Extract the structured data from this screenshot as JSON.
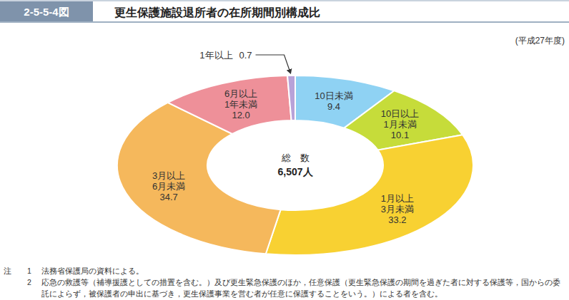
{
  "header": {
    "figure_number": "2-5-5-4図"
  },
  "chart_data": {
    "type": "donut",
    "title": "更生保護施設退所者の在所期間別構成比",
    "subtitle": "(平成27年度)",
    "categories": [
      "10日未満",
      "10日以上\n1月未満",
      "1月以上\n3月未満",
      "3月以上\n6月未満",
      "6月以上\n1年未満",
      "1年以上"
    ],
    "values": [
      9.4,
      10.1,
      33.2,
      34.7,
      12.0,
      0.7
    ],
    "value_labels": [
      "9.4",
      "10.1",
      "33.2",
      "34.7",
      "12.0",
      "0.7"
    ],
    "colors": [
      "#8fd2f3",
      "#c6dc3a",
      "#f8d132",
      "#f5b85c",
      "#ee9099",
      "#b8a2d8"
    ],
    "data_labels": true,
    "annotations": [
      "総　数",
      "6,507人"
    ]
  },
  "notes": {
    "label": "注",
    "items": [
      {
        "number": "1",
        "text": "法務省保護局の資料による。"
      },
      {
        "number": "2",
        "text": "応急の救護等（補導援護としての措置を含む。）及び更生緊急保護のほか，任意保護（更生緊急保護の期間を過ぎた者に対する保護等，国からの委託によらず，被保護者の申出に基づき，更生保護事業を営む者が任意に保護することをいう。）による者を含む。"
      }
    ]
  }
}
